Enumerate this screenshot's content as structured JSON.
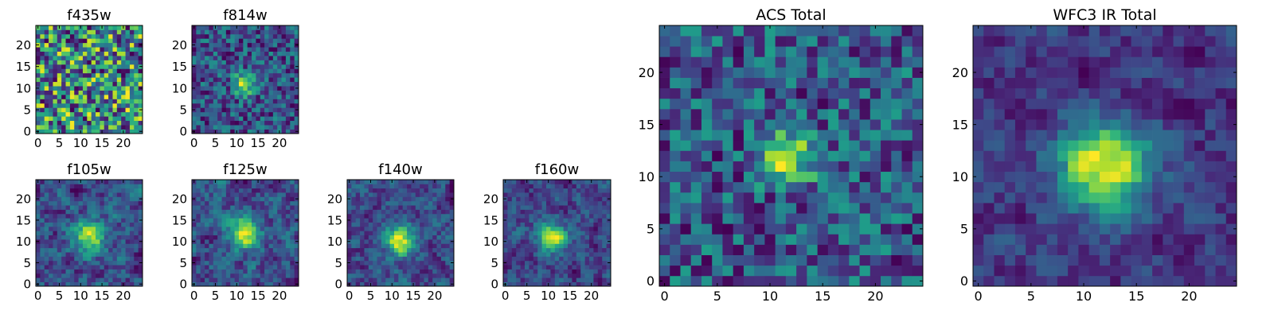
{
  "chart_data": [
    {
      "type": "heatmap",
      "title": "f435w",
      "xticks": [
        0,
        5,
        10,
        15,
        20
      ],
      "yticks": [
        0,
        5,
        10,
        15,
        20
      ],
      "xlim": [
        -0.5,
        24.5
      ],
      "ylim": [
        -0.5,
        24.5
      ],
      "grid": false,
      "colormap": "viridis",
      "seed": 11,
      "source": {
        "x": 12,
        "y": 10,
        "amp": 0.0,
        "sigma": 3.0
      },
      "noise": 0.55,
      "smooth": 0
    },
    {
      "type": "heatmap",
      "title": "f814w",
      "xticks": [
        0,
        5,
        10,
        15,
        20
      ],
      "yticks": [
        0,
        5,
        10,
        15,
        20
      ],
      "xlim": [
        -0.5,
        24.5
      ],
      "ylim": [
        -0.5,
        24.5
      ],
      "grid": false,
      "colormap": "viridis",
      "seed": 23,
      "source": {
        "x": 12,
        "y": 11,
        "amp": 0.55,
        "sigma": 1.8
      },
      "noise": 0.45,
      "smooth": 0
    },
    {
      "type": "heatmap",
      "title": "f105w",
      "xticks": [
        0,
        5,
        10,
        15,
        20
      ],
      "yticks": [
        0,
        5,
        10,
        15,
        20
      ],
      "xlim": [
        -0.5,
        24.5
      ],
      "ylim": [
        -0.5,
        24.5
      ],
      "grid": false,
      "colormap": "viridis",
      "seed": 37,
      "source": {
        "x": 12,
        "y": 11,
        "amp": 0.5,
        "sigma": 2.5
      },
      "noise": 0.5,
      "smooth": 1
    },
    {
      "type": "heatmap",
      "title": "f125w",
      "xticks": [
        0,
        5,
        10,
        15,
        20
      ],
      "yticks": [
        0,
        5,
        10,
        15,
        20
      ],
      "xlim": [
        -0.5,
        24.5
      ],
      "ylim": [
        -0.5,
        24.5
      ],
      "grid": false,
      "colormap": "viridis",
      "seed": 41,
      "source": {
        "x": 12,
        "y": 12,
        "amp": 0.55,
        "sigma": 2.5
      },
      "noise": 0.5,
      "smooth": 1
    },
    {
      "type": "heatmap",
      "title": "f140w",
      "xticks": [
        0,
        5,
        10,
        15,
        20
      ],
      "yticks": [
        0,
        5,
        10,
        15,
        20
      ],
      "xlim": [
        -0.5,
        24.5
      ],
      "ylim": [
        -0.5,
        24.5
      ],
      "grid": false,
      "colormap": "viridis",
      "seed": 53,
      "source": {
        "x": 12,
        "y": 10,
        "amp": 0.6,
        "sigma": 2.4
      },
      "noise": 0.5,
      "smooth": 1
    },
    {
      "type": "heatmap",
      "title": "f160w",
      "xticks": [
        0,
        5,
        10,
        15,
        20
      ],
      "yticks": [
        0,
        5,
        10,
        15,
        20
      ],
      "xlim": [
        -0.5,
        24.5
      ],
      "ylim": [
        -0.5,
        24.5
      ],
      "grid": false,
      "colormap": "viridis",
      "seed": 67,
      "source": {
        "x": 11,
        "y": 11,
        "amp": 0.6,
        "sigma": 2.3
      },
      "noise": 0.5,
      "smooth": 1
    },
    {
      "type": "heatmap",
      "title": "ACS Total",
      "xticks": [
        0,
        5,
        10,
        15,
        20
      ],
      "yticks": [
        0,
        5,
        10,
        15,
        20
      ],
      "xlim": [
        -0.5,
        24.5
      ],
      "ylim": [
        -0.5,
        24.5
      ],
      "grid": false,
      "colormap": "viridis",
      "seed": 79,
      "source": {
        "x": 12,
        "y": 12,
        "amp": 0.45,
        "sigma": 1.8
      },
      "noise": 0.4,
      "smooth": 0
    },
    {
      "type": "heatmap",
      "title": "WFC3 IR Total",
      "xticks": [
        0,
        5,
        10,
        15,
        20
      ],
      "yticks": [
        0,
        5,
        10,
        15,
        20
      ],
      "xlim": [
        -0.5,
        24.5
      ],
      "ylim": [
        -0.5,
        24.5
      ],
      "grid": false,
      "colormap": "viridis",
      "seed": 97,
      "source": {
        "x": 12,
        "y": 11,
        "amp": 0.6,
        "sigma": 3.0
      },
      "noise": 0.35,
      "smooth": 1
    }
  ],
  "colors": {
    "background": "#ffffff",
    "axis": "#000000",
    "text": "#000000"
  }
}
